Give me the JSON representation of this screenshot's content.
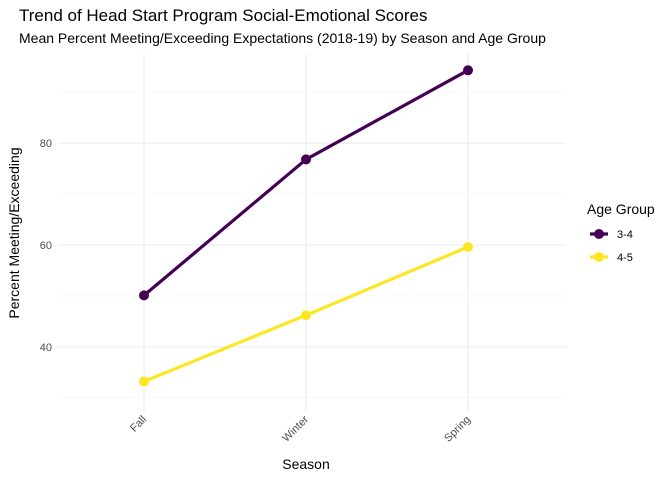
{
  "chart_data": {
    "type": "line",
    "title": "Trend of Head Start Program Social-Emotional Scores",
    "subtitle": "Mean Percent Meeting/Exceeding Expectations (2018-19) by Season and Age Group",
    "xlabel": "Season",
    "ylabel": "Percent Meeting/Exceeding",
    "categories": [
      "Fall",
      "Winter",
      "Spring"
    ],
    "yticks": [
      40,
      60,
      80
    ],
    "ylim": [
      27.2,
      97.5
    ],
    "grid": true,
    "legend": {
      "title": "Age Group",
      "position": "right"
    },
    "series": [
      {
        "name": "3-4",
        "color": "#440154",
        "values": [
          50.1,
          76.8,
          94.3
        ]
      },
      {
        "name": "4-5",
        "color": "#fde725",
        "values": [
          33.2,
          46.2,
          59.6
        ]
      }
    ]
  }
}
